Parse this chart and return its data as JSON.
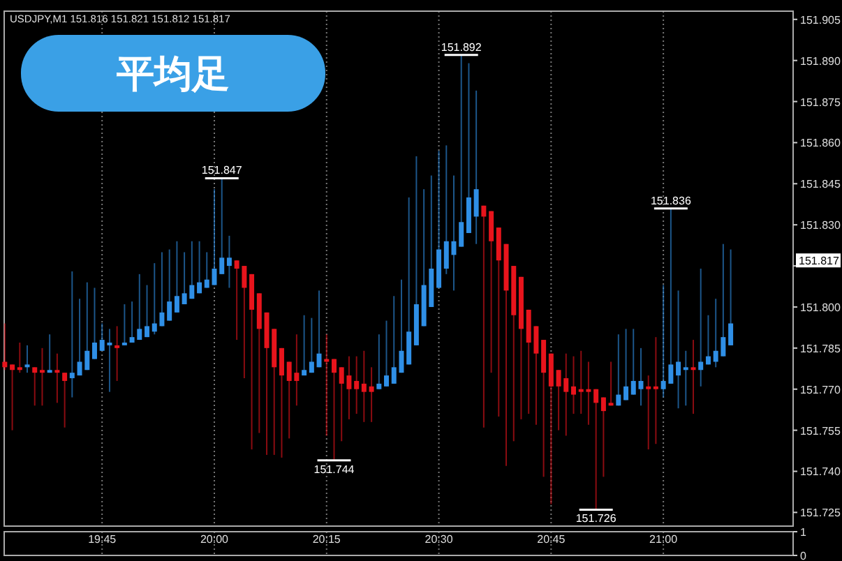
{
  "chart_data": [
    {
      "type": "candlestick",
      "title": "平均足",
      "subtitle": "USDJPY,M1 151.816 151.821 151.812 151.817",
      "x": [
        19.5333,
        19.55,
        19.5667,
        19.5833,
        19.6,
        19.6167,
        19.6333,
        19.65,
        19.6667,
        19.6833,
        19.7,
        19.7167,
        19.7333,
        19.75,
        19.7667,
        19.7833,
        19.8,
        19.8167,
        19.8333,
        19.85,
        19.8667,
        19.8833,
        19.9,
        19.9167,
        19.9333,
        19.95,
        19.9667,
        19.9833,
        20,
        20.0167,
        20.0333,
        20.05,
        20.0667,
        20.0833,
        20.1,
        20.1167,
        20.1333,
        20.15,
        20.1667,
        20.1833,
        20.2,
        20.2167,
        20.2333,
        20.25,
        20.2667,
        20.2833,
        20.3,
        20.3167,
        20.3333,
        20.35,
        20.3667,
        20.3833,
        20.4,
        20.4167,
        20.4333,
        20.45,
        20.4667,
        20.4833,
        20.5,
        20.5167,
        20.5333,
        20.55,
        20.5667,
        20.5833,
        20.6,
        20.6167,
        20.6333,
        20.65,
        20.6667,
        20.6833,
        20.7,
        20.7167,
        20.7333,
        20.75,
        20.7667,
        20.7833,
        20.8,
        20.8167,
        20.8333,
        20.85,
        20.8667,
        20.8833,
        20.9,
        20.9167,
        20.9333,
        20.95,
        20.9667,
        20.9833,
        21,
        21.0167,
        21.0333,
        21.05,
        21.0667,
        21.0833,
        21.1,
        21.1167,
        21.1333,
        21.15
      ],
      "ohlc": [
        [
          151.78,
          151.794,
          151.777,
          151.778
        ],
        [
          151.779,
          151.779,
          151.755,
          151.777
        ],
        [
          151.778,
          151.787,
          151.776,
          151.777
        ],
        [
          151.778,
          151.786,
          151.776,
          151.779
        ],
        [
          151.778,
          151.778,
          151.764,
          151.776
        ],
        [
          151.777,
          151.785,
          151.764,
          151.776
        ],
        [
          151.776,
          151.79,
          151.776,
          151.777
        ],
        [
          151.777,
          151.783,
          151.765,
          151.776
        ],
        [
          151.776,
          151.776,
          151.756,
          151.773
        ],
        [
          151.774,
          151.813,
          151.767,
          151.776
        ],
        [
          151.775,
          151.803,
          151.775,
          151.78
        ],
        [
          151.777,
          151.809,
          151.777,
          151.784
        ],
        [
          151.781,
          151.807,
          151.781,
          151.787
        ],
        [
          151.784,
          151.794,
          151.784,
          151.788
        ],
        [
          151.786,
          151.792,
          151.769,
          151.787
        ],
        [
          151.786,
          151.793,
          151.773,
          151.785
        ],
        [
          151.786,
          151.801,
          151.786,
          151.787
        ],
        [
          151.787,
          151.802,
          151.787,
          151.789
        ],
        [
          151.788,
          151.812,
          151.788,
          151.792
        ],
        [
          151.789,
          151.808,
          151.789,
          151.793
        ],
        [
          151.791,
          151.816,
          151.79,
          151.794
        ],
        [
          151.793,
          151.82,
          151.793,
          151.798
        ],
        [
          151.795,
          151.821,
          151.795,
          151.802
        ],
        [
          151.798,
          151.824,
          151.798,
          151.804
        ],
        [
          151.801,
          151.82,
          151.801,
          151.805
        ],
        [
          151.803,
          151.824,
          151.803,
          151.808
        ],
        [
          151.805,
          151.824,
          151.805,
          151.809
        ],
        [
          151.807,
          151.82,
          151.807,
          151.81
        ],
        [
          151.808,
          151.843,
          151.808,
          151.814
        ],
        [
          151.812,
          151.847,
          151.812,
          151.818
        ],
        [
          151.815,
          151.826,
          151.807,
          151.818
        ],
        [
          151.817,
          151.817,
          151.788,
          151.814
        ],
        [
          151.815,
          151.815,
          151.774,
          151.807
        ],
        [
          151.812,
          151.812,
          151.748,
          151.799
        ],
        [
          151.805,
          151.805,
          151.754,
          151.792
        ],
        [
          151.798,
          151.798,
          151.746,
          151.785
        ],
        [
          151.792,
          151.792,
          151.746,
          151.778
        ],
        [
          151.785,
          151.785,
          151.745,
          151.775
        ],
        [
          151.78,
          151.78,
          151.752,
          151.773
        ],
        [
          151.776,
          151.79,
          151.764,
          151.773
        ],
        [
          151.775,
          151.797,
          151.775,
          151.777
        ],
        [
          151.776,
          151.796,
          151.776,
          151.78
        ],
        [
          151.778,
          151.806,
          151.778,
          151.783
        ],
        [
          151.781,
          151.79,
          151.753,
          151.78
        ],
        [
          151.781,
          151.781,
          151.744,
          151.776
        ],
        [
          151.778,
          151.778,
          151.751,
          151.772
        ],
        [
          151.775,
          151.782,
          151.759,
          151.77
        ],
        [
          151.773,
          151.782,
          151.761,
          151.77
        ],
        [
          151.772,
          151.784,
          151.758,
          151.769
        ],
        [
          151.771,
          151.778,
          151.758,
          151.769
        ],
        [
          151.77,
          151.79,
          151.77,
          151.772
        ],
        [
          151.771,
          151.795,
          151.771,
          151.775
        ],
        [
          151.772,
          151.804,
          151.772,
          151.778
        ],
        [
          151.776,
          151.81,
          151.776,
          151.784
        ],
        [
          151.779,
          151.84,
          151.779,
          151.791
        ],
        [
          151.786,
          151.855,
          151.786,
          151.801
        ],
        [
          151.793,
          151.843,
          151.793,
          151.808
        ],
        [
          151.8,
          151.848,
          151.8,
          151.814
        ],
        [
          151.807,
          151.857,
          151.807,
          151.821
        ],
        [
          151.814,
          151.859,
          151.812,
          151.824
        ],
        [
          151.819,
          151.848,
          151.806,
          151.824
        ],
        [
          151.822,
          151.892,
          151.822,
          151.831
        ],
        [
          151.827,
          151.889,
          151.827,
          151.84
        ],
        [
          151.833,
          151.879,
          151.823,
          151.843
        ],
        [
          151.837,
          151.837,
          151.756,
          151.833
        ],
        [
          151.835,
          151.835,
          151.776,
          151.824
        ],
        [
          151.829,
          151.829,
          151.76,
          151.817
        ],
        [
          151.823,
          151.823,
          151.742,
          151.806
        ],
        [
          151.815,
          151.815,
          151.751,
          151.797
        ],
        [
          151.811,
          151.811,
          151.759,
          151.792
        ],
        [
          151.799,
          151.799,
          151.761,
          151.787
        ],
        [
          151.793,
          151.793,
          151.757,
          151.783
        ],
        [
          151.788,
          151.788,
          151.738,
          151.776
        ],
        [
          151.783,
          151.783,
          151.728,
          151.771
        ],
        [
          151.777,
          151.777,
          151.755,
          151.771
        ],
        [
          151.774,
          151.783,
          151.753,
          151.769
        ],
        [
          151.771,
          151.782,
          151.761,
          151.768
        ],
        [
          151.77,
          151.784,
          151.761,
          151.769
        ],
        [
          151.77,
          151.78,
          151.757,
          151.769
        ],
        [
          151.77,
          151.77,
          151.726,
          151.765
        ],
        [
          151.767,
          151.767,
          151.738,
          151.762
        ],
        [
          151.765,
          151.78,
          151.764,
          151.764
        ],
        [
          151.764,
          151.79,
          151.764,
          151.768
        ],
        [
          151.766,
          151.792,
          151.766,
          151.771
        ],
        [
          151.768,
          151.792,
          151.768,
          151.773
        ],
        [
          151.77,
          151.785,
          151.764,
          151.773
        ],
        [
          151.771,
          151.775,
          151.748,
          151.77
        ],
        [
          151.771,
          151.789,
          151.75,
          151.77
        ],
        [
          151.77,
          151.808,
          151.767,
          151.773
        ],
        [
          151.772,
          151.836,
          151.772,
          151.779
        ],
        [
          151.775,
          151.806,
          151.763,
          151.78
        ],
        [
          151.777,
          151.784,
          151.764,
          151.778
        ],
        [
          151.778,
          151.788,
          151.761,
          151.777
        ],
        [
          151.777,
          151.814,
          151.771,
          151.78
        ],
        [
          151.779,
          151.797,
          151.779,
          151.782
        ],
        [
          151.78,
          151.803,
          151.778,
          151.784
        ],
        [
          151.782,
          151.823,
          151.782,
          151.789
        ],
        [
          151.786,
          151.821,
          151.786,
          151.794
        ]
      ],
      "colors": [
        "#e8141c",
        "#e8141c",
        "#e8141c",
        "#2f8fe6",
        "#e8141c",
        "#e8141c",
        "#2f8fe6",
        "#e8141c",
        "#e8141c",
        "#2f8fe6",
        "#2f8fe6",
        "#2f8fe6",
        "#2f8fe6",
        "#2f8fe6",
        "#2f8fe6",
        "#e8141c",
        "#2f8fe6",
        "#2f8fe6",
        "#2f8fe6",
        "#2f8fe6",
        "#2f8fe6",
        "#2f8fe6",
        "#2f8fe6",
        "#2f8fe6",
        "#2f8fe6",
        "#2f8fe6",
        "#2f8fe6",
        "#2f8fe6",
        "#2f8fe6",
        "#2f8fe6",
        "#2f8fe6",
        "#e8141c",
        "#e8141c",
        "#e8141c",
        "#e8141c",
        "#e8141c",
        "#e8141c",
        "#e8141c",
        "#e8141c",
        "#e8141c",
        "#2f8fe6",
        "#2f8fe6",
        "#2f8fe6",
        "#e8141c",
        "#e8141c",
        "#e8141c",
        "#e8141c",
        "#e8141c",
        "#e8141c",
        "#e8141c",
        "#2f8fe6",
        "#2f8fe6",
        "#2f8fe6",
        "#2f8fe6",
        "#2f8fe6",
        "#2f8fe6",
        "#2f8fe6",
        "#2f8fe6",
        "#2f8fe6",
        "#2f8fe6",
        "#2f8fe6",
        "#2f8fe6",
        "#2f8fe6",
        "#2f8fe6",
        "#e8141c",
        "#e8141c",
        "#e8141c",
        "#e8141c",
        "#e8141c",
        "#e8141c",
        "#e8141c",
        "#e8141c",
        "#e8141c",
        "#e8141c",
        "#e8141c",
        "#e8141c",
        "#e8141c",
        "#e8141c",
        "#e8141c",
        "#e8141c",
        "#e8141c",
        "#e8141c",
        "#2f8fe6",
        "#2f8fe6",
        "#2f8fe6",
        "#2f8fe6",
        "#e8141c",
        "#e8141c",
        "#2f8fe6",
        "#2f8fe6",
        "#2f8fe6",
        "#2f8fe6",
        "#e8141c",
        "#2f8fe6",
        "#2f8fe6",
        "#2f8fe6",
        "#2f8fe6",
        "#2f8fe6"
      ],
      "xlim": [
        19.532,
        21.289
      ],
      "ylim": [
        151.72,
        151.908
      ],
      "xticks": [
        {
          "value": 19.75,
          "label": null
        },
        {
          "value": 20,
          "label": null
        },
        {
          "value": 20.25,
          "label": null
        },
        {
          "value": 20.5,
          "label": null
        },
        {
          "value": 20.75,
          "label": null
        },
        {
          "value": 21,
          "label": null
        }
      ],
      "yticks": [
        151.905,
        {
          "value": 151.89,
          "label": "151.890"
        },
        151.875,
        {
          "value": 151.86,
          "label": "151.860"
        },
        151.845,
        {
          "value": 151.83,
          "label": "151.830"
        },
        {
          "value": 151.815,
          "label": null
        },
        {
          "value": 151.8,
          "label": "151.800"
        },
        151.785,
        {
          "value": 151.77,
          "label": "151.770"
        },
        151.755,
        {
          "value": 151.74,
          "label": "151.740"
        },
        151.725
      ],
      "tick_labels": "y",
      "grid": "x",
      "annotations": [
        {
          "text": "151.847",
          "x": 20.0167,
          "y": 151.847
        },
        {
          "text": "151.744",
          "x": 20.2667,
          "y": 151.744
        },
        {
          "text": "151.892",
          "x": 20.55,
          "y": 151.892
        },
        {
          "text": "151.726",
          "x": 20.85,
          "y": 151.726
        },
        {
          "text": "151.836",
          "x": 21.0167,
          "y": 151.836
        },
        {
          "text": "151.817",
          "y": 151.817
        }
      ]
    },
    {
      "type": "line",
      "xlim": [
        19.532,
        21.289
      ],
      "ylim": [
        0,
        1
      ],
      "xticks": [
        {
          "value": 19.75,
          "label": "19:45"
        },
        {
          "value": 20,
          "label": "20:00"
        },
        {
          "value": 20.25,
          "label": "20:15"
        },
        {
          "value": 20.5,
          "label": "20:30"
        },
        {
          "value": 20.75,
          "label": "20:45"
        },
        {
          "value": 21,
          "label": "21:00"
        }
      ],
      "yticks": [
        0,
        1
      ],
      "grid": "x"
    }
  ]
}
